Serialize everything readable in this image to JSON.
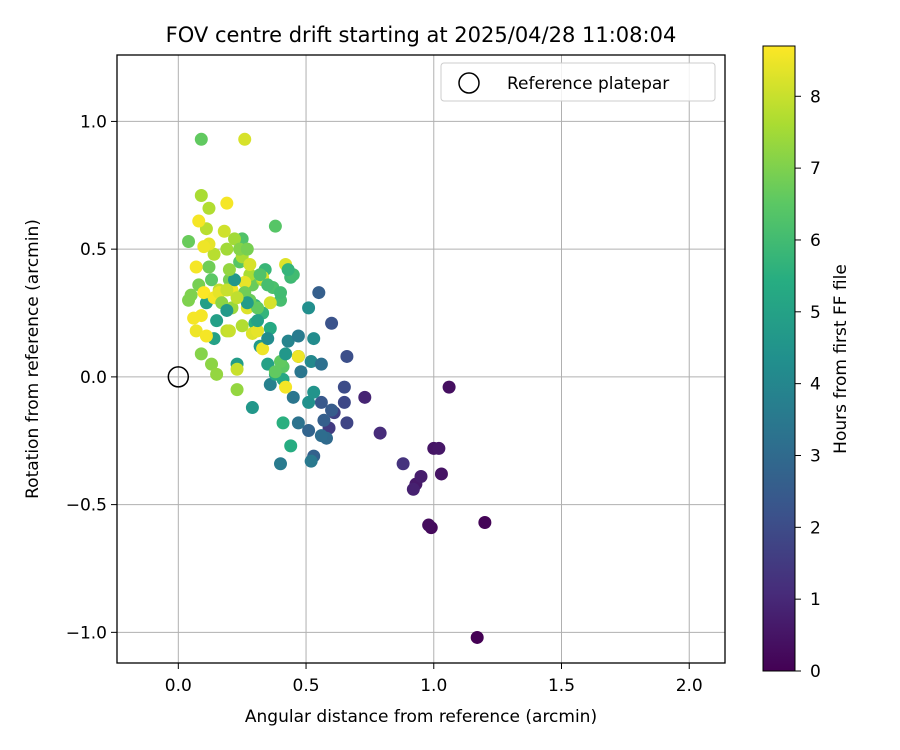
{
  "chart_data": {
    "type": "scatter",
    "title": "FOV centre drift starting at 2025/04/28 11:08:04",
    "xlabel": "Angular distance from reference (arcmin)",
    "ylabel": "Rotation from reference (arcmin)",
    "xlim": [
      -0.24,
      2.14
    ],
    "ylim": [
      -1.12,
      1.26
    ],
    "x_ticks": [
      0.0,
      0.5,
      1.0,
      1.5,
      2.0
    ],
    "x_tick_labels": [
      "0.0",
      "0.5",
      "1.0",
      "1.5",
      "2.0"
    ],
    "y_ticks": [
      -1.0,
      -0.5,
      0.0,
      0.5,
      1.0
    ],
    "y_tick_labels": [
      "−1.0",
      "−0.5",
      "0.0",
      "0.5",
      "1.0"
    ],
    "grid": true,
    "legend": {
      "position": "top-right",
      "entries": [
        {
          "label": "Reference platepar",
          "marker": "open-circle",
          "x": 0.0,
          "y": 0.0
        }
      ]
    },
    "colorbar": {
      "label": "Hours from first FF file",
      "min": 0,
      "max": 8.7,
      "ticks": [
        0,
        1,
        2,
        3,
        4,
        5,
        6,
        7,
        8
      ],
      "tick_labels": [
        "0",
        "1",
        "2",
        "3",
        "4",
        "5",
        "6",
        "7",
        "8"
      ],
      "colormap": "viridis"
    },
    "points": [
      [
        1.17,
        -1.02,
        0.0
      ],
      [
        1.2,
        -0.57,
        0.1
      ],
      [
        0.99,
        -0.59,
        0.2
      ],
      [
        0.98,
        -0.58,
        0.3
      ],
      [
        1.06,
        -0.04,
        0.35
      ],
      [
        1.03,
        -0.38,
        0.45
      ],
      [
        1.0,
        -0.28,
        0.5
      ],
      [
        1.02,
        -0.28,
        0.55
      ],
      [
        0.93,
        -0.42,
        0.6
      ],
      [
        0.95,
        -0.39,
        0.7
      ],
      [
        0.92,
        -0.44,
        0.8
      ],
      [
        0.73,
        -0.08,
        0.9
      ],
      [
        0.79,
        -0.22,
        1.1
      ],
      [
        0.88,
        -0.34,
        1.3
      ],
      [
        0.59,
        -0.2,
        1.5
      ],
      [
        0.61,
        -0.14,
        1.7
      ],
      [
        0.66,
        -0.18,
        1.8
      ],
      [
        0.65,
        -0.1,
        1.9
      ],
      [
        0.65,
        -0.04,
        2.0
      ],
      [
        0.66,
        0.08,
        2.1
      ],
      [
        0.6,
        0.21,
        2.2
      ],
      [
        0.56,
        -0.1,
        2.4
      ],
      [
        0.55,
        0.33,
        2.6
      ],
      [
        0.53,
        -0.31,
        2.7
      ],
      [
        0.51,
        -0.21,
        2.8
      ],
      [
        0.58,
        -0.24,
        3.0
      ],
      [
        0.56,
        -0.23,
        3.1
      ],
      [
        0.47,
        -0.18,
        3.3
      ],
      [
        0.45,
        -0.08,
        3.4
      ],
      [
        0.52,
        -0.33,
        3.5
      ],
      [
        0.4,
        -0.34,
        3.6
      ],
      [
        0.36,
        -0.03,
        3.8
      ],
      [
        0.43,
        0.14,
        3.9
      ],
      [
        0.47,
        0.08,
        4.0
      ],
      [
        0.52,
        0.06,
        4.1
      ],
      [
        0.53,
        0.15,
        4.2
      ],
      [
        0.51,
        0.27,
        4.3
      ],
      [
        0.51,
        -0.1,
        4.4
      ],
      [
        0.53,
        -0.06,
        4.5
      ],
      [
        0.29,
        -0.12,
        4.6
      ],
      [
        0.32,
        0.12,
        4.7
      ],
      [
        0.23,
        0.05,
        4.8
      ],
      [
        0.11,
        0.29,
        4.9
      ],
      [
        0.14,
        0.15,
        5.0
      ],
      [
        0.35,
        0.05,
        5.0
      ],
      [
        0.41,
        -0.01,
        5.2
      ],
      [
        0.38,
        0.01,
        5.3
      ],
      [
        0.44,
        -0.27,
        5.4
      ],
      [
        0.41,
        -0.18,
        5.5
      ],
      [
        0.3,
        0.21,
        5.5
      ],
      [
        0.3,
        0.28,
        5.6
      ],
      [
        0.33,
        0.25,
        5.7
      ],
      [
        0.34,
        0.42,
        5.8
      ],
      [
        0.44,
        0.39,
        5.9
      ],
      [
        0.45,
        0.4,
        6.0
      ],
      [
        0.4,
        0.3,
        6.1
      ],
      [
        0.37,
        0.35,
        6.2
      ],
      [
        0.25,
        0.54,
        6.3
      ],
      [
        0.38,
        0.59,
        6.4
      ],
      [
        0.24,
        0.45,
        6.4
      ],
      [
        0.41,
        0.04,
        6.5
      ],
      [
        0.38,
        0.02,
        6.6
      ],
      [
        0.4,
        0.06,
        6.6
      ],
      [
        0.29,
        0.36,
        6.7
      ],
      [
        0.28,
        0.3,
        6.7
      ],
      [
        0.13,
        0.38,
        6.5
      ],
      [
        0.09,
        0.93,
        6.6
      ],
      [
        0.04,
        0.53,
        6.7
      ],
      [
        0.12,
        0.43,
        6.8
      ],
      [
        0.08,
        0.36,
        6.9
      ],
      [
        0.05,
        0.32,
        7.0
      ],
      [
        0.04,
        0.3,
        7.0
      ],
      [
        0.09,
        0.09,
        7.1
      ],
      [
        0.13,
        0.05,
        7.2
      ],
      [
        0.15,
        0.01,
        7.3
      ],
      [
        0.23,
        -0.05,
        7.3
      ],
      [
        0.21,
        0.27,
        7.4
      ],
      [
        0.19,
        0.5,
        7.5
      ],
      [
        0.22,
        0.54,
        7.5
      ],
      [
        0.25,
        0.47,
        7.6
      ],
      [
        0.28,
        0.4,
        7.6
      ],
      [
        0.33,
        0.38,
        7.7
      ],
      [
        0.09,
        0.71,
        7.6
      ],
      [
        0.12,
        0.66,
        7.7
      ],
      [
        0.14,
        0.48,
        7.8
      ],
      [
        0.11,
        0.58,
        7.8
      ],
      [
        0.16,
        0.34,
        7.9
      ],
      [
        0.19,
        0.18,
        7.9
      ],
      [
        0.23,
        0.03,
        8.0
      ],
      [
        0.26,
        0.93,
        8.2
      ],
      [
        0.18,
        0.57,
        8.1
      ],
      [
        0.28,
        0.44,
        8.2
      ],
      [
        0.33,
        0.39,
        8.3
      ],
      [
        0.36,
        0.29,
        8.2
      ],
      [
        0.42,
        0.44,
        8.3
      ],
      [
        0.29,
        0.17,
        8.3
      ],
      [
        0.12,
        0.52,
        8.4
      ],
      [
        0.1,
        0.51,
        8.5
      ],
      [
        0.08,
        0.61,
        8.6
      ],
      [
        0.19,
        0.68,
        8.6
      ],
      [
        0.07,
        0.43,
        8.6
      ],
      [
        0.1,
        0.33,
        8.7
      ],
      [
        0.14,
        0.31,
        8.6
      ],
      [
        0.06,
        0.23,
        8.6
      ],
      [
        0.09,
        0.24,
        8.6
      ],
      [
        0.07,
        0.18,
        8.5
      ],
      [
        0.11,
        0.16,
        8.6
      ],
      [
        0.16,
        0.33,
        8.4
      ],
      [
        0.21,
        0.34,
        8.5
      ],
      [
        0.26,
        0.37,
        8.4
      ],
      [
        0.27,
        0.27,
        8.3
      ],
      [
        0.31,
        0.18,
        8.4
      ],
      [
        0.33,
        0.11,
        8.5
      ],
      [
        0.42,
        -0.04,
        8.6
      ],
      [
        0.47,
        0.08,
        8.5
      ],
      [
        0.2,
        0.18,
        8.0
      ],
      [
        0.25,
        0.2,
        7.7
      ],
      [
        0.17,
        0.29,
        7.2
      ],
      [
        0.2,
        0.38,
        6.9
      ],
      [
        0.26,
        0.33,
        6.8
      ],
      [
        0.31,
        0.27,
        6.6
      ],
      [
        0.32,
        0.4,
        6.3
      ],
      [
        0.35,
        0.36,
        6.1
      ],
      [
        0.4,
        0.33,
        6.0
      ],
      [
        0.43,
        0.42,
        5.7
      ],
      [
        0.36,
        0.19,
        5.3
      ],
      [
        0.31,
        0.22,
        5.0
      ],
      [
        0.27,
        0.29,
        4.8
      ],
      [
        0.22,
        0.38,
        4.6
      ],
      [
        0.19,
        0.26,
        4.7
      ],
      [
        0.15,
        0.22,
        4.9
      ],
      [
        0.35,
        0.15,
        4.2
      ],
      [
        0.47,
        0.16,
        3.6
      ],
      [
        0.48,
        0.02,
        3.4
      ],
      [
        0.57,
        -0.17,
        2.6
      ],
      [
        0.6,
        -0.13,
        2.5
      ],
      [
        0.56,
        0.05,
        3.2
      ],
      [
        0.42,
        0.09,
        4.6
      ],
      [
        0.2,
        0.42,
        7.3
      ],
      [
        0.24,
        0.5,
        7.1
      ],
      [
        0.27,
        0.5,
        6.9
      ],
      [
        0.23,
        0.31,
        7.9
      ],
      [
        0.19,
        0.34,
        8.0
      ]
    ]
  }
}
